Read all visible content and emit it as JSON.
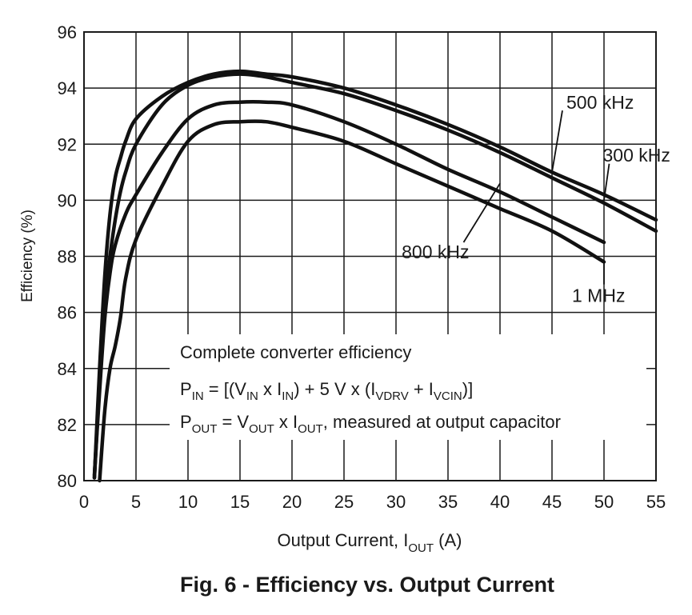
{
  "chart_data": {
    "type": "line",
    "xlabel": "Output Current, I",
    "xlabel_sub": "OUT",
    "xlabel_unit": " (A)",
    "ylabel": "Efficiency (%)",
    "xlim": [
      0,
      55
    ],
    "ylim": [
      80,
      96
    ],
    "x_ticks": [
      "0",
      "5",
      "10",
      "15",
      "20",
      "25",
      "30",
      "35",
      "40",
      "45",
      "50",
      "55"
    ],
    "y_ticks": [
      "80",
      "82",
      "84",
      "86",
      "88",
      "90",
      "92",
      "94",
      "96"
    ],
    "grid": true,
    "series": [
      {
        "name": "500 kHz",
        "x": [
          1.0,
          1.5,
          2.0,
          2.5,
          3.0,
          3.5,
          4.0,
          5.0,
          7.5,
          10.0,
          12.5,
          15.0,
          17.5,
          20.0,
          25.0,
          30.0,
          35.0,
          40.0,
          45.0,
          50.0,
          55.0
        ],
        "y": [
          80.1,
          84.0,
          87.3,
          89.5,
          90.8,
          91.5,
          92.1,
          92.9,
          93.7,
          94.2,
          94.5,
          94.6,
          94.5,
          94.4,
          94.0,
          93.4,
          92.7,
          91.9,
          91.0,
          90.2,
          89.3
        ]
      },
      {
        "name": "300 kHz",
        "x": [
          1.0,
          1.5,
          2.0,
          2.5,
          3.0,
          3.5,
          4.0,
          5.0,
          7.5,
          10.0,
          12.5,
          15.0,
          17.5,
          20.0,
          25.0,
          30.0,
          35.0,
          40.0,
          45.0,
          50.0,
          55.0
        ],
        "y": [
          80.1,
          83.5,
          86.3,
          88.0,
          89.3,
          90.3,
          91.0,
          92.0,
          93.4,
          94.1,
          94.4,
          94.5,
          94.4,
          94.2,
          93.8,
          93.2,
          92.5,
          91.7,
          90.8,
          89.9,
          88.9
        ]
      },
      {
        "name": "800 kHz",
        "x": [
          1.0,
          1.5,
          2.0,
          2.5,
          3.0,
          4.0,
          5.0,
          7.5,
          10.0,
          12.5,
          15.0,
          17.5,
          20.0,
          25.0,
          30.0,
          35.0,
          40.0,
          45.0,
          50.0
        ],
        "y": [
          80.2,
          83.2,
          85.8,
          87.4,
          88.4,
          89.5,
          90.2,
          91.7,
          92.9,
          93.4,
          93.5,
          93.5,
          93.4,
          92.8,
          92.0,
          91.1,
          90.3,
          89.4,
          88.5
        ]
      },
      {
        "name": "1 MHz",
        "x": [
          1.5,
          2.0,
          2.5,
          3.0,
          3.5,
          4.0,
          5.0,
          7.5,
          10.0,
          12.5,
          15.0,
          17.5,
          20.0,
          25.0,
          30.0,
          35.0,
          40.0,
          45.0,
          50.0
        ],
        "y": [
          80.0,
          82.5,
          84.0,
          84.8,
          85.8,
          87.2,
          88.6,
          90.5,
          92.1,
          92.7,
          92.8,
          92.8,
          92.6,
          92.1,
          91.3,
          90.5,
          89.7,
          88.9,
          87.8
        ]
      }
    ],
    "series_labels": [
      {
        "text": "500 kHz",
        "leader_from": [
          45.0,
          91.0
        ],
        "anchor": [
          46.0,
          93.2
        ]
      },
      {
        "text": "300 kHz",
        "leader_from": [
          50.0,
          90.0
        ],
        "anchor": [
          50.5,
          91.3
        ]
      },
      {
        "text": "800 kHz",
        "leader_from": [
          40.0,
          90.6
        ],
        "anchor": [
          36.5,
          88.5
        ]
      },
      {
        "text": "1 MHz",
        "leader_from": [
          50.0,
          87.8
        ],
        "anchor": [
          50.0,
          87.0
        ]
      }
    ],
    "annotation": {
      "title": "Complete converter efficiency",
      "line2": {
        "p": "P",
        "p_sub": "IN",
        "a": " = [(V",
        "a_sub": "IN",
        "b": " x I",
        "b_sub": "IN",
        "c": ") + 5 V x (I",
        "c_sub": "VDRV",
        "d": " + I",
        "d_sub": "VCIN",
        "e": ")]"
      },
      "line3": {
        "p": "P",
        "p_sub": "OUT",
        "a": " = V",
        "a_sub": "OUT",
        "b": " x I",
        "b_sub": "OUT",
        "c": ", measured at output capacitor"
      }
    }
  },
  "caption": "Fig. 6 - Efficiency vs. Output Current"
}
